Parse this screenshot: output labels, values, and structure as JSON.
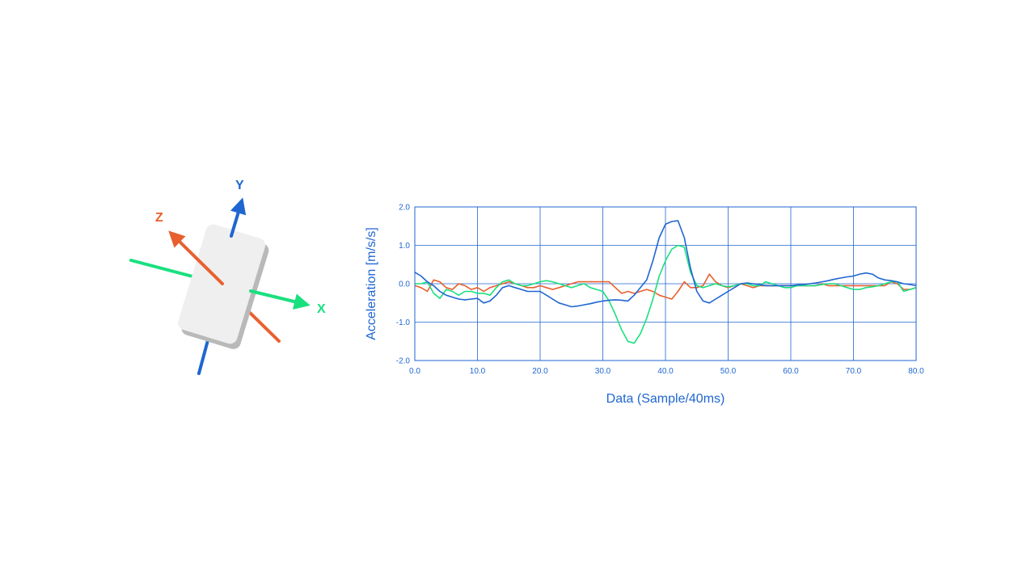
{
  "colors": {
    "axis_frame": "#1f66d1",
    "grid": "#1f66d1",
    "zero_line": "#1f66d1",
    "x_axis": "#19e07f",
    "y_axis": "#1f66d1",
    "z_axis": "#e8602f",
    "device_face": "#efefef",
    "device_shadow": "#b9b9b9"
  },
  "diagram": {
    "x_label": "X",
    "y_label": "Y",
    "z_label": "Z"
  },
  "chart_data": {
    "type": "line",
    "xlabel": "Data (Sample/40ms)",
    "ylabel": "Acceleration [m/s/s]",
    "xlim": [
      0,
      80
    ],
    "ylim": [
      -2,
      2
    ],
    "x_ticks": [
      "0.0",
      "10.0",
      "20.0",
      "30.0",
      "40.0",
      "50.0",
      "60.0",
      "70.0",
      "80.0"
    ],
    "y_ticks": [
      "2.0",
      "1.0",
      "0.0",
      "-1.0",
      "-2.0"
    ],
    "grid": true,
    "legend": false,
    "x": [
      0,
      1,
      2,
      3,
      4,
      5,
      6,
      7,
      8,
      9,
      10,
      11,
      12,
      13,
      14,
      15,
      16,
      17,
      18,
      19,
      20,
      21,
      22,
      23,
      24,
      25,
      26,
      27,
      28,
      29,
      30,
      31,
      32,
      33,
      34,
      35,
      36,
      37,
      38,
      39,
      40,
      41,
      42,
      43,
      44,
      45,
      46,
      47,
      48,
      49,
      50,
      51,
      52,
      53,
      54,
      55,
      56,
      57,
      58,
      59,
      60,
      61,
      62,
      63,
      64,
      65,
      66,
      67,
      68,
      69,
      70,
      71,
      72,
      73,
      74,
      75,
      76,
      77,
      78,
      79,
      80
    ],
    "series": [
      {
        "color": "#1f66d1",
        "values": [
          0.3,
          0.2,
          0.05,
          -0.05,
          -0.2,
          -0.3,
          -0.35,
          -0.4,
          -0.42,
          -0.4,
          -0.38,
          -0.5,
          -0.45,
          -0.3,
          -0.1,
          -0.05,
          -0.1,
          -0.15,
          -0.2,
          -0.2,
          -0.2,
          -0.3,
          -0.4,
          -0.5,
          -0.55,
          -0.6,
          -0.58,
          -0.55,
          -0.52,
          -0.48,
          -0.45,
          -0.43,
          -0.42,
          -0.43,
          -0.45,
          -0.3,
          -0.1,
          0.1,
          0.6,
          1.2,
          1.55,
          1.62,
          1.64,
          1.2,
          0.4,
          -0.2,
          -0.45,
          -0.5,
          -0.4,
          -0.3,
          -0.2,
          -0.1,
          0.0,
          0.02,
          0.0,
          -0.02,
          -0.05,
          -0.05,
          -0.05,
          -0.05,
          -0.05,
          -0.03,
          -0.02,
          0.0,
          0.02,
          0.05,
          0.08,
          0.12,
          0.15,
          0.18,
          0.2,
          0.25,
          0.28,
          0.25,
          0.15,
          0.1,
          0.08,
          0.05,
          0.0,
          -0.02,
          -0.05
        ]
      },
      {
        "color": "#19e07f",
        "values": [
          0.0,
          0.0,
          0.05,
          -0.25,
          -0.38,
          -0.15,
          -0.2,
          -0.3,
          -0.2,
          -0.2,
          -0.25,
          -0.25,
          -0.3,
          -0.1,
          0.05,
          0.1,
          0.0,
          -0.05,
          -0.05,
          0.0,
          0.05,
          0.08,
          0.05,
          0.0,
          -0.05,
          -0.1,
          -0.05,
          0.0,
          -0.1,
          -0.15,
          -0.2,
          -0.45,
          -0.8,
          -1.2,
          -1.5,
          -1.55,
          -1.3,
          -0.9,
          -0.4,
          0.2,
          0.6,
          0.9,
          1.0,
          0.95,
          0.3,
          -0.05,
          -0.1,
          -0.05,
          0.0,
          -0.05,
          -0.08,
          -0.05,
          0.0,
          0.0,
          -0.05,
          -0.05,
          0.05,
          0.0,
          -0.05,
          -0.1,
          -0.1,
          -0.05,
          -0.05,
          -0.05,
          -0.05,
          -0.02,
          0.0,
          0.0,
          -0.05,
          -0.1,
          -0.15,
          -0.15,
          -0.1,
          -0.08,
          -0.05,
          0.0,
          0.05,
          0.05,
          -0.2,
          -0.15,
          -0.1
        ]
      },
      {
        "color": "#e8602f",
        "values": [
          -0.05,
          -0.1,
          -0.2,
          0.1,
          0.05,
          -0.1,
          -0.15,
          0.0,
          -0.05,
          -0.15,
          -0.1,
          -0.2,
          -0.1,
          -0.05,
          0.0,
          0.05,
          0.0,
          -0.05,
          -0.1,
          -0.1,
          -0.05,
          -0.1,
          -0.15,
          -0.1,
          -0.05,
          0.0,
          0.05,
          0.05,
          0.05,
          0.05,
          0.05,
          0.05,
          -0.1,
          -0.25,
          -0.2,
          -0.25,
          -0.2,
          -0.15,
          -0.2,
          -0.3,
          -0.35,
          -0.4,
          -0.2,
          0.05,
          -0.1,
          -0.1,
          -0.05,
          0.25,
          0.05,
          -0.05,
          -0.1,
          -0.05,
          0.0,
          -0.05,
          -0.1,
          -0.05,
          -0.05,
          -0.05,
          -0.05,
          -0.05,
          -0.05,
          -0.05,
          -0.05,
          -0.05,
          -0.05,
          0.0,
          -0.05,
          -0.05,
          -0.05,
          -0.05,
          -0.05,
          -0.05,
          -0.05,
          -0.05,
          -0.05,
          -0.05,
          0.05,
          0.0,
          -0.15,
          -0.15,
          -0.1
        ]
      }
    ]
  }
}
